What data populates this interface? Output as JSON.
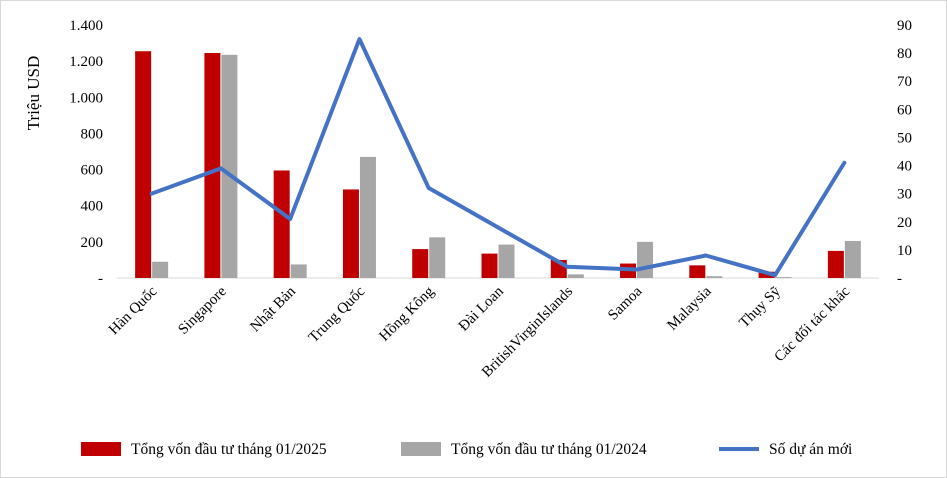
{
  "chart_data": {
    "type": "bar",
    "categories": [
      "Hàn Quốc",
      "Singapore",
      "Nhật Bản",
      "Trung Quốc",
      "Hồng Kông",
      "Đài Loan",
      "BritishVirginIslands",
      "Samoa",
      "Malaysia",
      "Thụy Sỹ",
      "Các đối tác khác"
    ],
    "series": [
      {
        "name": "Tổng vốn đầu tư tháng 01/2025",
        "axis": "left",
        "kind": "bar",
        "color": "#c00000",
        "values": [
          1255,
          1245,
          595,
          490,
          160,
          135,
          100,
          80,
          70,
          35,
          150
        ]
      },
      {
        "name": "Tổng vốn đầu tư tháng 01/2024",
        "axis": "left",
        "kind": "bar",
        "color": "#a6a6a6",
        "values": [
          90,
          1235,
          75,
          670,
          225,
          185,
          20,
          200,
          10,
          5,
          205
        ]
      },
      {
        "name": "Số dự án mới",
        "axis": "right",
        "kind": "line",
        "color": "#4472c4",
        "values": [
          30,
          39,
          21,
          85,
          32,
          18,
          4,
          3,
          8,
          1,
          41
        ]
      }
    ],
    "ylabel": "Triệu USD",
    "y_left": {
      "lim": [
        0,
        1400
      ],
      "ticks": [
        "-",
        "200",
        "400",
        "600",
        "800",
        "1.000",
        "1.200",
        "1.400"
      ]
    },
    "y_right": {
      "lim": [
        0,
        90
      ],
      "ticks": [
        "-",
        "10",
        "20",
        "30",
        "40",
        "50",
        "60",
        "70",
        "80",
        "90"
      ]
    },
    "grid": false,
    "legend_position": "bottom"
  }
}
